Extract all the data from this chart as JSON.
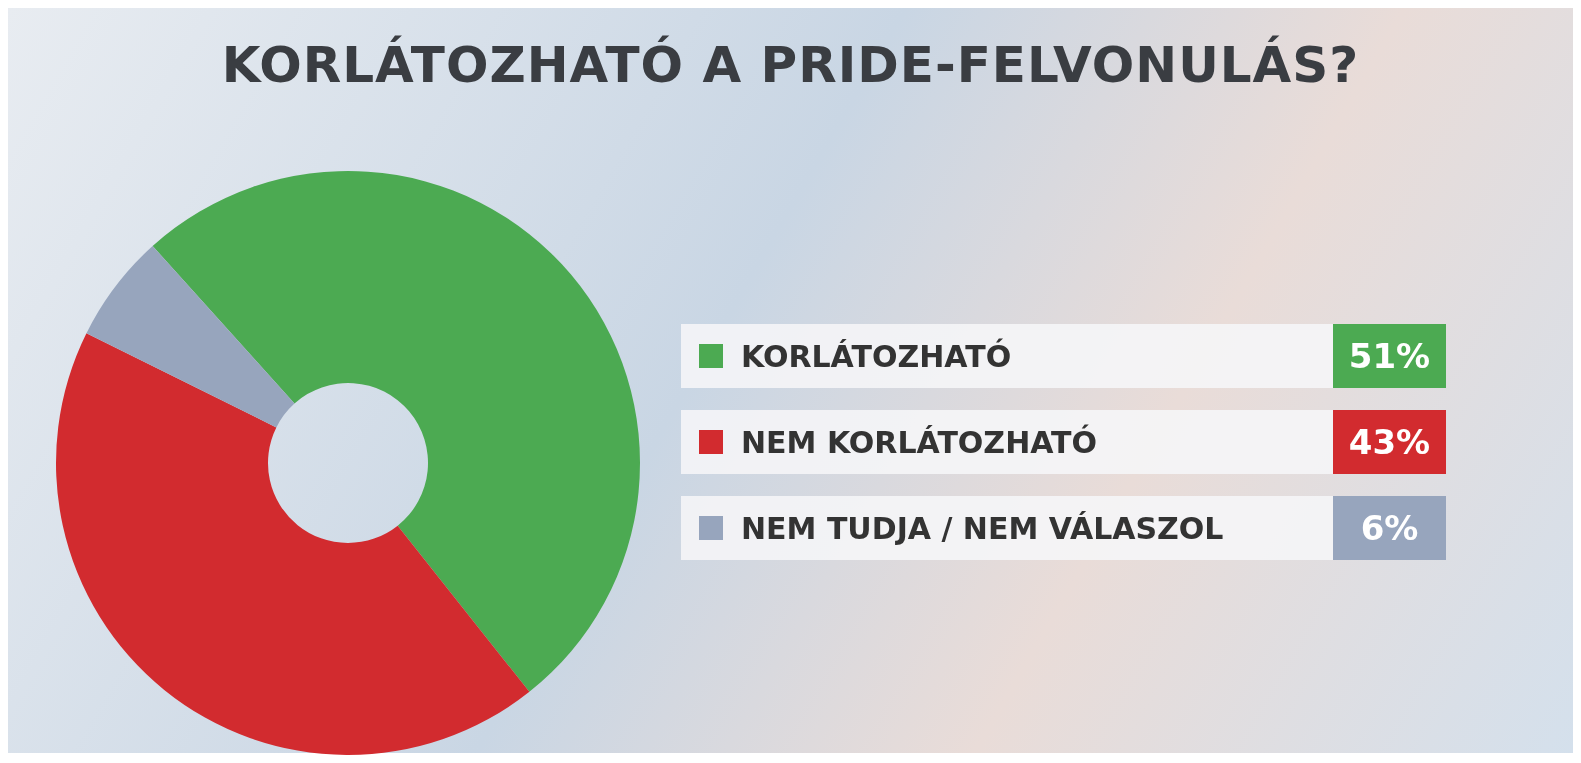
{
  "chart_data": {
    "type": "donut",
    "title": "KORLÁTOZHATÓ A PRIDE-FELVONULÁS?",
    "categories": [
      "KORLÁTOZHATÓ",
      "NEM KORLÁTOZHATÓ",
      "NEM TUDJA / NEM VÁLASZOL"
    ],
    "values": [
      51,
      43,
      6
    ],
    "colors": [
      "#4caa52",
      "#d22b2f",
      "#97a5bd"
    ],
    "value_labels": [
      "51%",
      "43%",
      "6%"
    ],
    "legend": "right"
  }
}
